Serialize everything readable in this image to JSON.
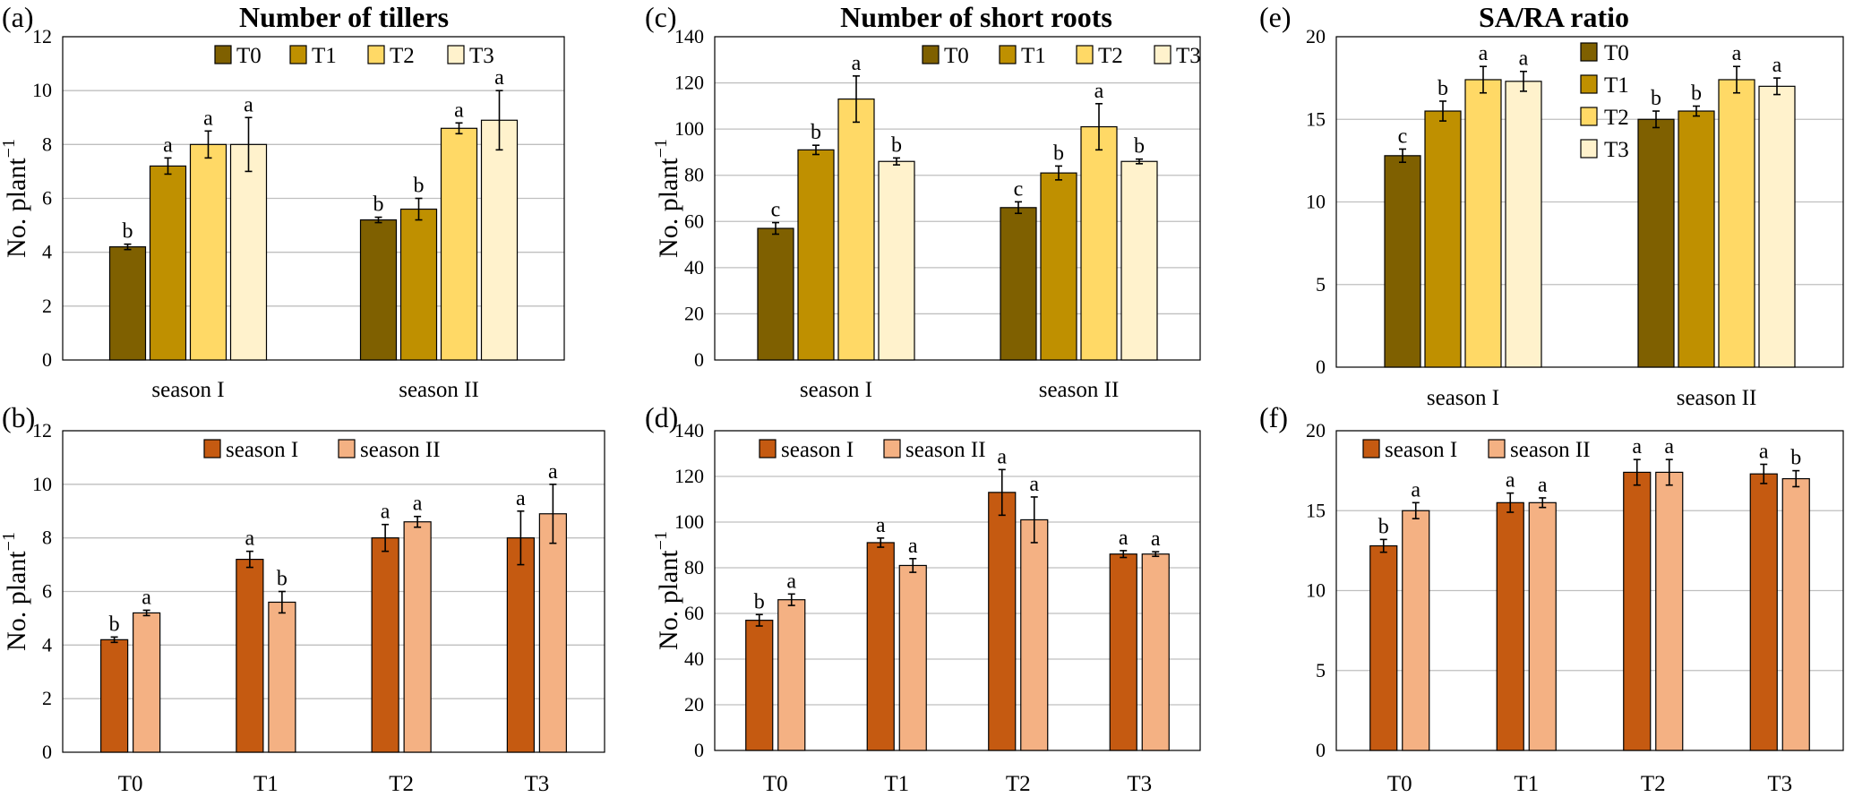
{
  "chart_data": [
    {
      "panel": "(a)",
      "type": "bar",
      "title": "Number of tillers",
      "ylabel": "No. plant",
      "ylabel_sup": "−1",
      "ylim": [
        0,
        12
      ],
      "yticks": [
        "0",
        "2",
        "4",
        "6",
        "8",
        "10",
        "12"
      ],
      "grid": true,
      "legend_position": "top-center",
      "categories": [
        "season I",
        "season II"
      ],
      "series": [
        {
          "name": "T0",
          "color": "#7f6000",
          "values": [
            4.2,
            5.2
          ],
          "errors": [
            0.1,
            0.1
          ],
          "letters": [
            "b",
            "b"
          ]
        },
        {
          "name": "T1",
          "color": "#bf9000",
          "values": [
            7.2,
            5.6
          ],
          "errors": [
            0.3,
            0.4
          ],
          "letters": [
            "a",
            "b"
          ]
        },
        {
          "name": "T2",
          "color": "#ffd966",
          "values": [
            8.0,
            8.6
          ],
          "errors": [
            0.5,
            0.2
          ],
          "letters": [
            "a",
            "a"
          ]
        },
        {
          "name": "T3",
          "color": "#fff2cc",
          "values": [
            8.0,
            8.9
          ],
          "errors": [
            1.0,
            1.1
          ],
          "letters": [
            "a",
            "a"
          ]
        }
      ]
    },
    {
      "panel": "(c)",
      "type": "bar",
      "title": "Number of short roots",
      "ylabel": "No. plant",
      "ylabel_sup": "−1",
      "ylim": [
        0,
        140
      ],
      "yticks": [
        "0",
        "20",
        "40",
        "60",
        "80",
        "100",
        "120",
        "140"
      ],
      "grid": true,
      "legend_position": "top-center",
      "categories": [
        "season I",
        "season II"
      ],
      "series": [
        {
          "name": "T0",
          "color": "#7f6000",
          "values": [
            57,
            66
          ],
          "errors": [
            2.5,
            2.5
          ],
          "letters": [
            "c",
            "c"
          ]
        },
        {
          "name": "T1",
          "color": "#bf9000",
          "values": [
            91,
            81
          ],
          "errors": [
            2.0,
            3.0
          ],
          "letters": [
            "b",
            "b"
          ]
        },
        {
          "name": "T2",
          "color": "#ffd966",
          "values": [
            113,
            101
          ],
          "errors": [
            10,
            10
          ],
          "letters": [
            "a",
            "a"
          ]
        },
        {
          "name": "T3",
          "color": "#fff2cc",
          "values": [
            86,
            86
          ],
          "errors": [
            1.5,
            1.0
          ],
          "letters": [
            "b",
            "b"
          ]
        }
      ]
    },
    {
      "panel": "(e)",
      "type": "bar",
      "title": "SA/RA ratio",
      "ylabel": "",
      "ylabel_sup": "",
      "ylim": [
        0,
        20
      ],
      "yticks": [
        "0",
        "5",
        "10",
        "15",
        "20"
      ],
      "grid": true,
      "legend_position": "top-center-vertical",
      "categories": [
        "season I",
        "season II"
      ],
      "series": [
        {
          "name": "T0",
          "color": "#7f6000",
          "values": [
            12.8,
            15.0
          ],
          "errors": [
            0.4,
            0.5
          ],
          "letters": [
            "c",
            "b"
          ]
        },
        {
          "name": "T1",
          "color": "#bf9000",
          "values": [
            15.5,
            15.5
          ],
          "errors": [
            0.6,
            0.3
          ],
          "letters": [
            "b",
            "b"
          ]
        },
        {
          "name": "T2",
          "color": "#ffd966",
          "values": [
            17.4,
            17.4
          ],
          "errors": [
            0.8,
            0.8
          ],
          "letters": [
            "a",
            "a"
          ]
        },
        {
          "name": "T3",
          "color": "#fff2cc",
          "values": [
            17.3,
            17.0
          ],
          "errors": [
            0.6,
            0.5
          ],
          "letters": [
            "a",
            "a"
          ]
        }
      ]
    },
    {
      "panel": "(b)",
      "type": "bar",
      "title": "",
      "ylabel": "No. plant",
      "ylabel_sup": "−1",
      "ylim": [
        0,
        12
      ],
      "yticks": [
        "0",
        "2",
        "4",
        "6",
        "8",
        "10",
        "12"
      ],
      "grid": true,
      "legend_position": "top-center",
      "categories": [
        "T0",
        "T1",
        "T2",
        "T3"
      ],
      "series": [
        {
          "name": "season I",
          "color": "#c55a11",
          "values": [
            4.2,
            7.2,
            8.0,
            8.0
          ],
          "errors": [
            0.1,
            0.3,
            0.5,
            1.0
          ],
          "letters": [
            "b",
            "a",
            "a",
            "a"
          ]
        },
        {
          "name": "season II",
          "color": "#f4b183",
          "values": [
            5.2,
            5.6,
            8.6,
            8.9
          ],
          "errors": [
            0.1,
            0.4,
            0.2,
            1.1
          ],
          "letters": [
            "a",
            "b",
            "a",
            "a"
          ]
        }
      ]
    },
    {
      "panel": "(d)",
      "type": "bar",
      "title": "",
      "ylabel": "No. plant",
      "ylabel_sup": "−1",
      "ylim": [
        0,
        140
      ],
      "yticks": [
        "0",
        "20",
        "40",
        "60",
        "80",
        "100",
        "120",
        "140"
      ],
      "grid": true,
      "legend_position": "top-left",
      "categories": [
        "T0",
        "T1",
        "T2",
        "T3"
      ],
      "series": [
        {
          "name": "season I",
          "color": "#c55a11",
          "values": [
            57,
            91,
            113,
            86
          ],
          "errors": [
            2.5,
            2.0,
            10,
            1.5
          ],
          "letters": [
            "b",
            "a",
            "a",
            "a"
          ]
        },
        {
          "name": "season II",
          "color": "#f4b183",
          "values": [
            66,
            81,
            101,
            86
          ],
          "errors": [
            2.5,
            3.0,
            10,
            1.0
          ],
          "letters": [
            "a",
            "a",
            "a",
            "a"
          ]
        }
      ]
    },
    {
      "panel": "(f)",
      "type": "bar",
      "title": "",
      "ylabel": "",
      "ylabel_sup": "",
      "ylim": [
        0,
        20
      ],
      "yticks": [
        "0",
        "5",
        "10",
        "15",
        "20"
      ],
      "grid": true,
      "legend_position": "top-left",
      "categories": [
        "T0",
        "T1",
        "T2",
        "T3"
      ],
      "series": [
        {
          "name": "season I",
          "color": "#c55a11",
          "values": [
            12.8,
            15.5,
            17.4,
            17.3
          ],
          "errors": [
            0.4,
            0.6,
            0.8,
            0.6
          ],
          "letters": [
            "b",
            "a",
            "a",
            "a"
          ]
        },
        {
          "name": "season II",
          "color": "#f4b183",
          "values": [
            15.0,
            15.5,
            17.4,
            17.0
          ],
          "errors": [
            0.5,
            0.3,
            0.8,
            0.5
          ],
          "letters": [
            "a",
            "a",
            "a",
            "b"
          ]
        }
      ]
    }
  ]
}
